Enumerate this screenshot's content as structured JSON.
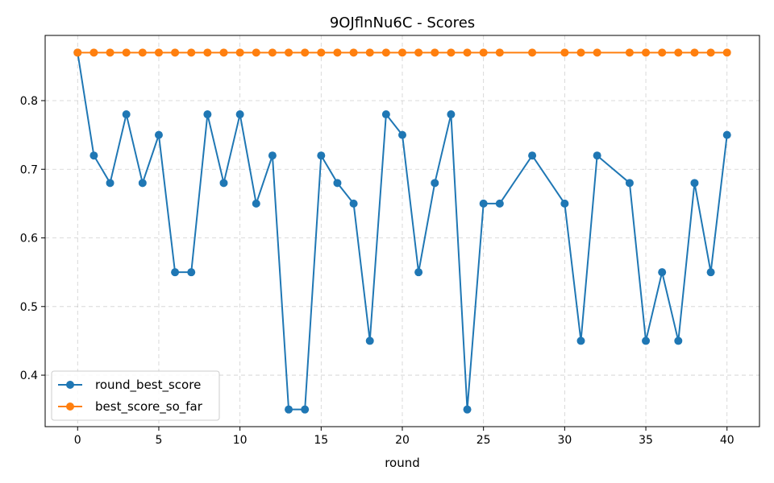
{
  "chart_data": {
    "type": "line",
    "title": "9OJflnNu6C - Scores",
    "xlabel": "round",
    "ylabel": "",
    "xlim": [
      -2,
      42
    ],
    "ylim": [
      0.325,
      0.895
    ],
    "xticks": [
      0,
      5,
      10,
      15,
      20,
      25,
      30,
      35,
      40
    ],
    "yticks": [
      0.4,
      0.5,
      0.6,
      0.7,
      0.8
    ],
    "grid": true,
    "legend_position": "lower-left",
    "series": [
      {
        "name": "round_best_score",
        "color": "#1f77b4",
        "x": [
          0,
          1,
          2,
          3,
          4,
          5,
          6,
          7,
          8,
          9,
          10,
          11,
          12,
          13,
          14,
          15,
          16,
          17,
          18,
          19,
          20,
          21,
          22,
          23,
          24,
          25,
          26,
          28,
          30,
          31,
          32,
          34,
          35,
          36,
          37,
          38,
          39,
          40
        ],
        "y": [
          0.87,
          0.72,
          0.68,
          0.78,
          0.68,
          0.75,
          0.55,
          0.55,
          0.78,
          0.68,
          0.78,
          0.65,
          0.72,
          0.35,
          0.35,
          0.72,
          0.68,
          0.65,
          0.45,
          0.78,
          0.75,
          0.55,
          0.68,
          0.78,
          0.35,
          0.65,
          0.65,
          0.72,
          0.65,
          0.45,
          0.72,
          0.68,
          0.45,
          0.55,
          0.45,
          0.68,
          0.55,
          0.75
        ]
      },
      {
        "name": "best_score_so_far",
        "color": "#ff7f0e",
        "x": [
          0,
          1,
          2,
          3,
          4,
          5,
          6,
          7,
          8,
          9,
          10,
          11,
          12,
          13,
          14,
          15,
          16,
          17,
          18,
          19,
          20,
          21,
          22,
          23,
          24,
          25,
          26,
          28,
          30,
          31,
          32,
          34,
          35,
          36,
          37,
          38,
          39,
          40
        ],
        "y": [
          0.87,
          0.87,
          0.87,
          0.87,
          0.87,
          0.87,
          0.87,
          0.87,
          0.87,
          0.87,
          0.87,
          0.87,
          0.87,
          0.87,
          0.87,
          0.87,
          0.87,
          0.87,
          0.87,
          0.87,
          0.87,
          0.87,
          0.87,
          0.87,
          0.87,
          0.87,
          0.87,
          0.87,
          0.87,
          0.87,
          0.87,
          0.87,
          0.87,
          0.87,
          0.87,
          0.87,
          0.87,
          0.87
        ]
      }
    ]
  }
}
